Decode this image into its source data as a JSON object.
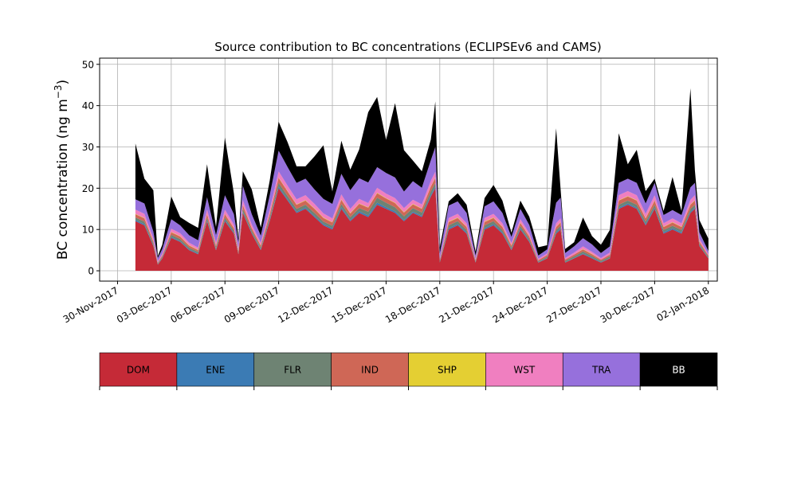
{
  "chart_data": {
    "type": "area",
    "stacked": true,
    "title": "Source contribution to BC concentrations (ECLIPSEv6 and CAMS)",
    "ylabel": "BC concentration (ng m⁻³)",
    "xlabel": "",
    "xlim": [
      "2017-11-29",
      "2018-01-02T12:00"
    ],
    "ylim": [
      -2.5,
      51.5
    ],
    "x_ticks": [
      "30-Nov-2017",
      "03-Dec-2017",
      "06-Dec-2017",
      "09-Dec-2017",
      "12-Dec-2017",
      "15-Dec-2017",
      "18-Dec-2017",
      "21-Dec-2017",
      "24-Dec-2017",
      "27-Dec-2017",
      "30-Dec-2017",
      "02-Jan-2018"
    ],
    "y_ticks": [
      0,
      10,
      20,
      30,
      40,
      50
    ],
    "grid": true,
    "legend": "below plot, as a color bar",
    "x": [
      "2017-12-01T00:00",
      "2017-12-01T12:00",
      "2017-12-02T00:00",
      "2017-12-02T06:00",
      "2017-12-02T12:00",
      "2017-12-03T00:00",
      "2017-12-03T12:00",
      "2017-12-04T00:00",
      "2017-12-04T12:00",
      "2017-12-05T00:00",
      "2017-12-05T12:00",
      "2017-12-06T00:00",
      "2017-12-06T12:00",
      "2017-12-06T18:00",
      "2017-12-07T00:00",
      "2017-12-07T12:00",
      "2017-12-08T00:00",
      "2017-12-08T12:00",
      "2017-12-09T00:00",
      "2017-12-09T12:00",
      "2017-12-10T00:00",
      "2017-12-10T12:00",
      "2017-12-11T00:00",
      "2017-12-11T12:00",
      "2017-12-12T00:00",
      "2017-12-12T12:00",
      "2017-12-13T00:00",
      "2017-12-13T12:00",
      "2017-12-14T00:00",
      "2017-12-14T12:00",
      "2017-12-15T00:00",
      "2017-12-15T12:00",
      "2017-12-16T00:00",
      "2017-12-16T12:00",
      "2017-12-17T00:00",
      "2017-12-17T12:00",
      "2017-12-17T18:00",
      "2017-12-18T00:00",
      "2017-12-18T12:00",
      "2017-12-19T00:00",
      "2017-12-19T12:00",
      "2017-12-20T00:00",
      "2017-12-20T12:00",
      "2017-12-21T00:00",
      "2017-12-21T12:00",
      "2017-12-22T00:00",
      "2017-12-22T12:00",
      "2017-12-23T00:00",
      "2017-12-23T12:00",
      "2017-12-24T00:00",
      "2017-12-24T12:00",
      "2017-12-24T18:00",
      "2017-12-25T00:00",
      "2017-12-25T12:00",
      "2017-12-26T00:00",
      "2017-12-26T12:00",
      "2017-12-27T00:00",
      "2017-12-27T12:00",
      "2017-12-28T00:00",
      "2017-12-28T12:00",
      "2017-12-29T00:00",
      "2017-12-29T12:00",
      "2017-12-30T00:00",
      "2017-12-30T12:00",
      "2017-12-31T00:00",
      "2017-12-31T12:00",
      "2018-01-01T00:00",
      "2018-01-01T06:00",
      "2018-01-01T12:00",
      "2018-01-02T00:00"
    ],
    "series": [
      {
        "name": "DOM",
        "color": "#c52a37",
        "values": [
          12,
          11,
          6,
          1.5,
          3,
          8,
          7,
          5,
          4,
          12,
          5,
          12,
          9,
          4,
          14,
          9,
          5,
          12,
          20,
          17,
          14,
          15,
          13,
          11,
          10,
          15,
          12,
          14,
          13,
          16,
          15,
          14,
          12,
          14,
          13,
          18,
          20,
          2,
          10,
          11,
          9,
          2,
          10,
          11,
          9,
          5,
          10,
          7,
          2,
          3,
          9,
          10,
          2,
          3,
          4,
          3,
          2,
          3,
          15,
          16,
          15,
          11,
          15,
          9,
          10,
          9,
          14,
          15,
          6,
          3
        ]
      },
      {
        "name": "ENE",
        "color": "#3b7bb4",
        "values": [
          0.3,
          0.3,
          0.2,
          0.1,
          0.1,
          0.2,
          0.2,
          0.2,
          0.2,
          0.3,
          0.2,
          0.3,
          0.2,
          0.1,
          0.3,
          0.2,
          0.2,
          0.3,
          0.4,
          0.3,
          0.3,
          0.3,
          0.3,
          0.3,
          0.3,
          0.4,
          0.3,
          0.4,
          0.4,
          0.5,
          0.4,
          0.4,
          0.3,
          0.3,
          0.3,
          0.4,
          0.4,
          0.1,
          0.3,
          0.3,
          0.3,
          0.1,
          0.3,
          0.3,
          0.3,
          0.2,
          0.3,
          0.2,
          0.1,
          0.1,
          0.3,
          0.3,
          0.1,
          0.1,
          0.2,
          0.2,
          0.1,
          0.1,
          0.3,
          0.3,
          0.3,
          0.3,
          0.3,
          0.3,
          0.3,
          0.3,
          0.3,
          0.3,
          0.2,
          0.1
        ]
      },
      {
        "name": "FLR",
        "color": "#6e8373",
        "values": [
          0.6,
          0.6,
          0.4,
          0.2,
          0.3,
          0.5,
          0.5,
          0.4,
          0.4,
          0.6,
          0.4,
          0.6,
          0.5,
          0.3,
          0.7,
          0.5,
          0.4,
          0.6,
          0.9,
          0.8,
          0.7,
          0.7,
          0.7,
          0.6,
          0.6,
          0.8,
          0.7,
          0.8,
          0.9,
          1.2,
          1.1,
          1,
          0.9,
          0.9,
          0.8,
          0.9,
          0.9,
          0.3,
          0.7,
          0.7,
          0.6,
          0.2,
          0.7,
          0.7,
          0.6,
          0.4,
          0.6,
          0.5,
          0.2,
          0.3,
          0.6,
          0.6,
          0.3,
          0.4,
          0.5,
          0.4,
          0.3,
          0.4,
          0.7,
          0.7,
          0.7,
          0.6,
          0.7,
          0.6,
          0.6,
          0.6,
          0.7,
          0.7,
          0.4,
          0.3
        ]
      },
      {
        "name": "IND",
        "color": "#cf6756",
        "values": [
          0.8,
          0.8,
          0.5,
          0.2,
          0.3,
          0.6,
          0.6,
          0.5,
          0.4,
          0.8,
          0.5,
          0.8,
          0.6,
          0.4,
          0.9,
          0.6,
          0.5,
          0.8,
          1.2,
          1.1,
          1,
          1,
          1,
          0.9,
          0.8,
          1,
          0.9,
          1,
          1,
          1.1,
          1,
          1,
          0.9,
          0.9,
          0.9,
          1.1,
          1.2,
          0.3,
          0.8,
          0.8,
          0.7,
          0.3,
          0.8,
          0.8,
          0.7,
          0.5,
          0.7,
          0.6,
          0.3,
          0.4,
          0.7,
          0.8,
          0.3,
          0.4,
          0.5,
          0.4,
          0.3,
          0.4,
          1,
          1,
          1,
          0.8,
          1,
          0.7,
          0.8,
          0.7,
          1,
          1,
          0.5,
          0.3
        ]
      },
      {
        "name": "SHP",
        "color": "#e4cf33",
        "values": [
          0.1,
          0.1,
          0.1,
          0,
          0,
          0.1,
          0.1,
          0.1,
          0.1,
          0.1,
          0.1,
          0.1,
          0.1,
          0.1,
          0.1,
          0.1,
          0.1,
          0.1,
          0.1,
          0.1,
          0.1,
          0.1,
          0.1,
          0.1,
          0.1,
          0.1,
          0.1,
          0.1,
          0.1,
          0.1,
          0.1,
          0.1,
          0.1,
          0.1,
          0.1,
          0.1,
          0.1,
          0,
          0.1,
          0.1,
          0.1,
          0,
          0.1,
          0.1,
          0.1,
          0.1,
          0.1,
          0.1,
          0,
          0,
          0.1,
          0.1,
          0,
          0,
          0.1,
          0.1,
          0,
          0,
          0.1,
          0.1,
          0.1,
          0.1,
          0.1,
          0.1,
          0.1,
          0.1,
          0.1,
          0.1,
          0.1,
          0
        ]
      },
      {
        "name": "WST",
        "color": "#f07fc0",
        "values": [
          1,
          1,
          0.6,
          0.3,
          0.4,
          0.8,
          0.7,
          0.6,
          0.5,
          1,
          0.6,
          1,
          0.8,
          0.5,
          1.1,
          0.8,
          0.6,
          1,
          1.5,
          1.3,
          1.2,
          1.2,
          1.1,
          1,
          0.9,
          1.2,
          1,
          1.1,
          1,
          1.2,
          1.1,
          1.1,
          1,
          1,
          1,
          1.3,
          1.4,
          0.3,
          0.9,
          0.9,
          0.8,
          0.3,
          0.9,
          0.9,
          0.8,
          0.5,
          0.8,
          0.7,
          0.3,
          0.4,
          0.8,
          0.9,
          0.4,
          0.5,
          0.6,
          0.5,
          0.4,
          0.5,
          1.2,
          1.2,
          1.2,
          1,
          1.2,
          0.8,
          0.9,
          0.8,
          1.1,
          1.2,
          0.6,
          0.3
        ]
      },
      {
        "name": "TRA",
        "color": "#9670dc",
        "values": [
          2.5,
          2.5,
          1.7,
          0.8,
          1.2,
          2.3,
          1.9,
          1.8,
          1.8,
          3,
          1.8,
          3.5,
          2.5,
          1.5,
          3.5,
          2.5,
          1.7,
          3.5,
          5,
          4.5,
          4,
          4,
          3.5,
          3.5,
          3.5,
          5,
          4.5,
          5,
          5,
          5,
          5,
          5,
          4,
          4.5,
          4,
          5,
          6,
          1.2,
          3,
          3,
          2.5,
          0.8,
          2.8,
          3,
          2.5,
          1.5,
          2.5,
          2,
          0.8,
          1,
          5,
          5,
          1.2,
          1.5,
          2,
          1.8,
          1.2,
          1.5,
          3,
          3,
          3,
          2.5,
          3,
          2,
          2,
          2,
          3,
          3,
          1.5,
          0.8
        ]
      },
      {
        "name": "BB",
        "color": "#000000",
        "values": [
          13.5,
          6,
          10,
          0.5,
          1,
          5.5,
          2,
          3,
          3,
          8,
          2,
          14,
          5,
          1,
          3.5,
          6,
          2,
          3.5,
          7,
          6,
          4,
          3,
          8,
          13,
          3,
          8,
          5,
          7,
          17,
          17,
          8,
          18,
          10,
          5,
          4,
          5,
          11,
          1.5,
          1,
          2,
          2,
          1,
          2,
          4,
          3,
          1,
          2,
          2,
          2,
          1,
          18,
          2,
          1,
          1,
          5,
          2,
          2,
          4,
          12,
          3.5,
          8,
          3,
          1,
          1,
          8,
          1,
          24,
          3,
          3,
          3
        ]
      }
    ]
  }
}
